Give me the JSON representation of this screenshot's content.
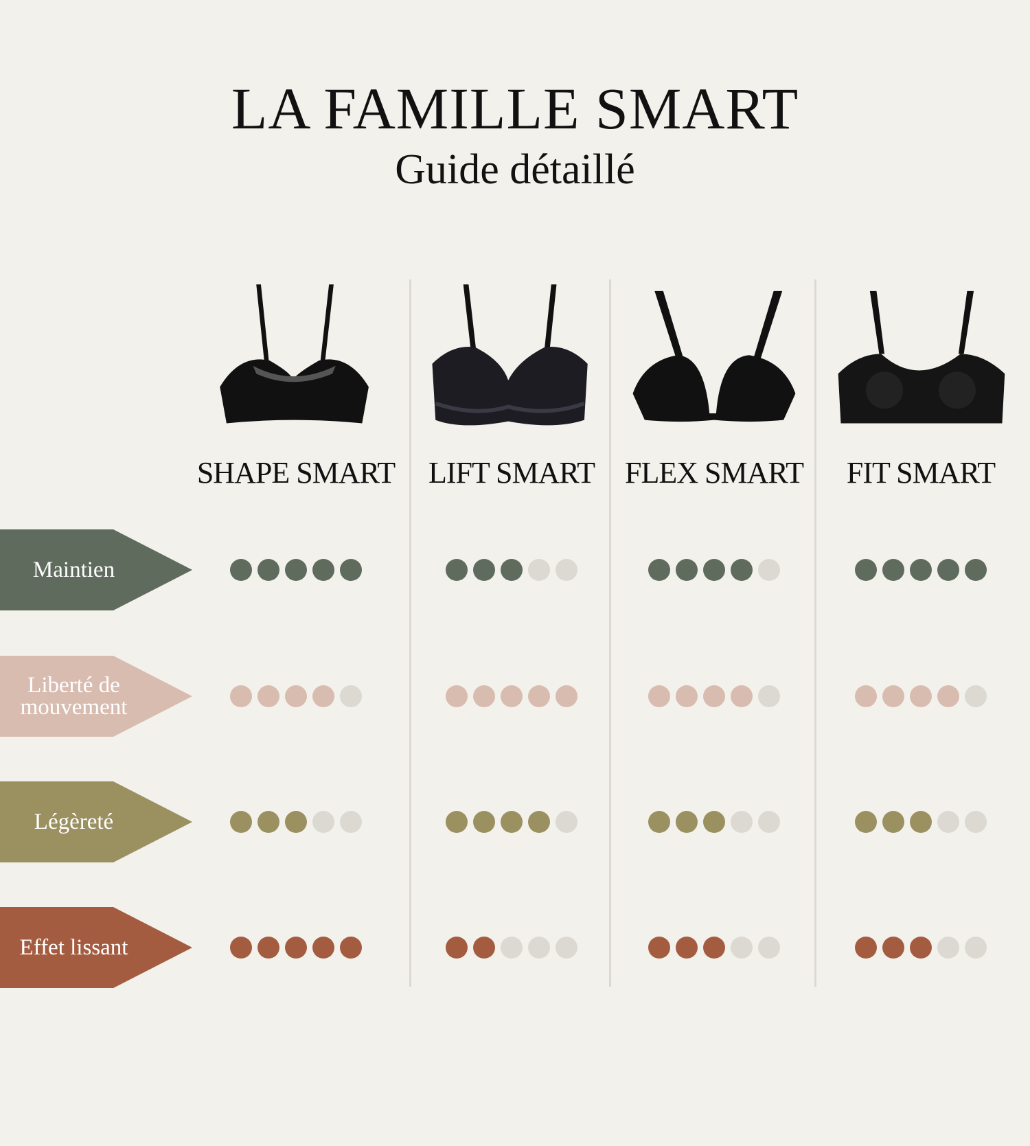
{
  "title": "LA FAMILLE SMART",
  "subtitle": "Guide détaillé",
  "colors": {
    "background": "#f3f1ec",
    "empty_dot": "#dcd9d3",
    "divider": "#dcd9d3"
  },
  "products": [
    {
      "name": "SHAPE SMART",
      "image": "black-smooth-bra"
    },
    {
      "name": "LIFT SMART",
      "image": "black-lace-bralette"
    },
    {
      "name": "FLEX SMART",
      "image": "black-wireless-plunge-bra"
    },
    {
      "name": "FIT SMART",
      "image": "black-scoop-bra"
    }
  ],
  "criteria": [
    {
      "label": "Maintien",
      "color": "#5f6b5c",
      "ratings": [
        5,
        3,
        4,
        5
      ]
    },
    {
      "label": "Liberté de mouvement",
      "color": "#d9bcb0",
      "ratings": [
        4,
        5,
        4,
        4
      ]
    },
    {
      "label": "Légèreté",
      "color": "#9b9060",
      "ratings": [
        3,
        4,
        3,
        3
      ]
    },
    {
      "label": "Effet lissant",
      "color": "#a45c40",
      "ratings": [
        5,
        2,
        3,
        3
      ]
    }
  ],
  "max_rating": 5
}
